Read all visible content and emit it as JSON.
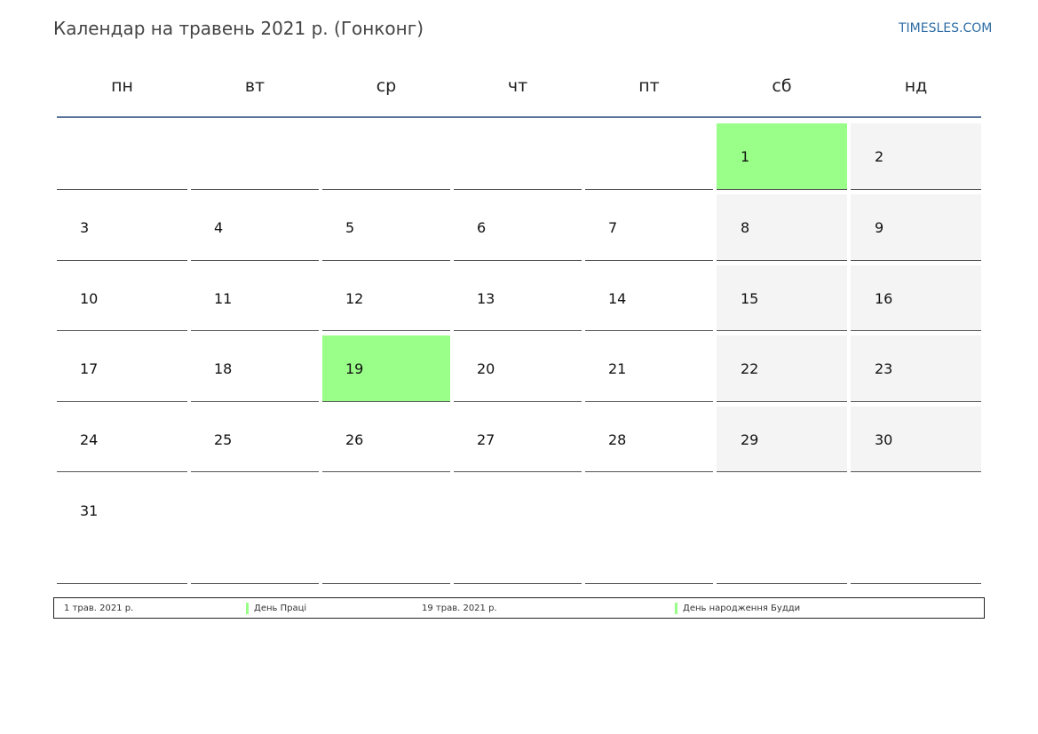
{
  "header": {
    "title": "Календар на травень 2021 р. (Гонконг)",
    "site": "TIMESLES.COM"
  },
  "weekdays": [
    "пн",
    "вт",
    "ср",
    "чт",
    "пт",
    "сб",
    "нд"
  ],
  "weeks": [
    [
      "",
      "",
      "",
      "",
      "",
      "1",
      "2"
    ],
    [
      "3",
      "4",
      "5",
      "6",
      "7",
      "8",
      "9"
    ],
    [
      "10",
      "11",
      "12",
      "13",
      "14",
      "15",
      "16"
    ],
    [
      "17",
      "18",
      "19",
      "20",
      "21",
      "22",
      "23"
    ],
    [
      "24",
      "25",
      "26",
      "27",
      "28",
      "29",
      "30"
    ],
    [
      "31",
      "",
      "",
      "",
      "",
      "",
      ""
    ]
  ],
  "holiday_days": [
    "1",
    "19"
  ],
  "colors": {
    "holiday": "#99ff88",
    "weekend": "#f4f4f4",
    "header_rule": "#5a7399",
    "link": "#2e6da4"
  },
  "legend": [
    {
      "date": "1 трав. 2021 р.",
      "name": "День Праці"
    },
    {
      "date": "19 трав. 2021 р.",
      "name": "День народження Будди"
    }
  ]
}
